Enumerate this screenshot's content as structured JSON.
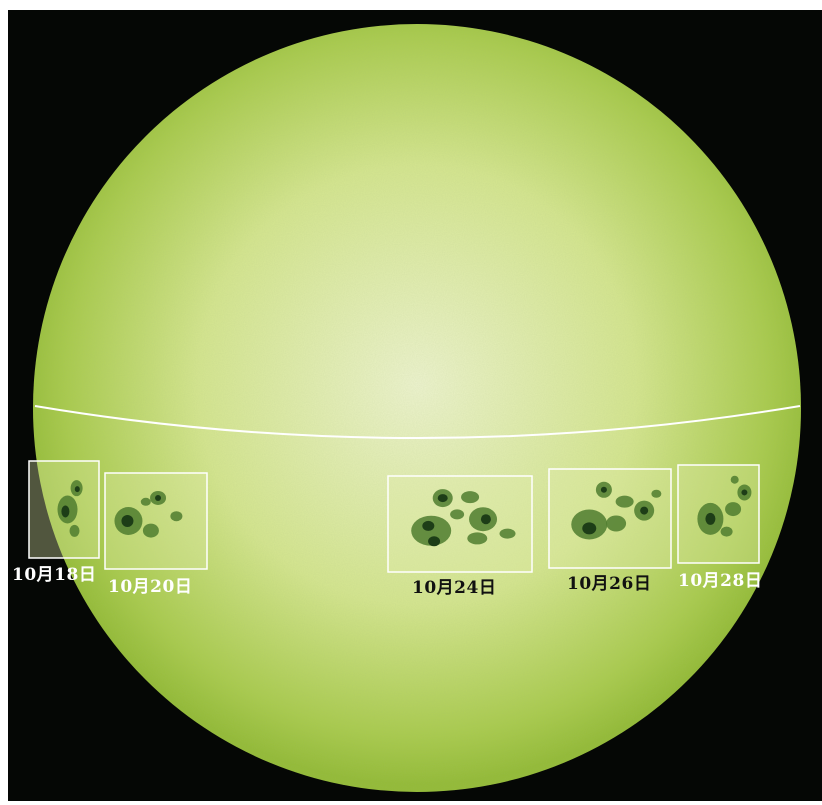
{
  "image": {
    "subject": "full-disk-sun-with-sunspot-group-track",
    "colors": {
      "background": "#050705",
      "disk_center": "#eef4cf",
      "disk_mid": "#d5e68f",
      "disk_limb": "#a9cb4c",
      "disk_edge": "#93bb35",
      "spot_umbra": "#1d3d17",
      "spot_penumbra": "#4f7d2f",
      "frame": "#ffffff",
      "label_light": "#ffffff",
      "label_dark": "#111111"
    }
  },
  "sunspot_frames": [
    {
      "id": "oct18",
      "label": "10月18日",
      "label_color": "light",
      "stage_fraction": 0.0
    },
    {
      "id": "oct20",
      "label": "10月20日",
      "label_color": "light",
      "stage_fraction": 0.2
    },
    {
      "id": "oct24",
      "label": "10月24日",
      "label_color": "dark",
      "stage_fraction": 0.6
    },
    {
      "id": "oct26",
      "label": "10月26日",
      "label_color": "dark",
      "stage_fraction": 0.8
    },
    {
      "id": "oct28",
      "label": "10月28日",
      "label_color": "light",
      "stage_fraction": 1.0
    }
  ]
}
